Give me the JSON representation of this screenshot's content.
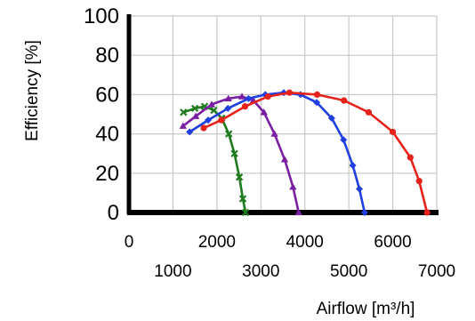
{
  "chart_data": {
    "type": "line",
    "title": "",
    "xlabel": "Airflow [m³/h]",
    "ylabel": "Efficiency [%]",
    "xlim": [
      0,
      7000
    ],
    "ylim": [
      0,
      100
    ],
    "grid": true,
    "legend": "none",
    "x_ticks_row1": [
      "0",
      "2000",
      "4000",
      "6000"
    ],
    "x_ticks_row2": [
      "1000",
      "3000",
      "5000",
      "7000"
    ],
    "y_ticks": [
      "0",
      "20",
      "40",
      "60",
      "80",
      "100"
    ],
    "series": [
      {
        "color": "#1e7b1e",
        "marker": "x",
        "points": [
          [
            1240,
            51
          ],
          [
            1500,
            53
          ],
          [
            1720,
            54
          ],
          [
            1930,
            52
          ],
          [
            2110,
            48
          ],
          [
            2270,
            40
          ],
          [
            2400,
            30
          ],
          [
            2510,
            18
          ],
          [
            2590,
            7
          ],
          [
            2650,
            0
          ]
        ]
      },
      {
        "color": "#7b1fa2",
        "marker": "triangle",
        "points": [
          [
            1230,
            44
          ],
          [
            1520,
            49
          ],
          [
            1880,
            55
          ],
          [
            2260,
            58
          ],
          [
            2570,
            59
          ],
          [
            2830,
            57
          ],
          [
            3070,
            51
          ],
          [
            3310,
            40
          ],
          [
            3540,
            27
          ],
          [
            3730,
            13
          ],
          [
            3860,
            0
          ]
        ]
      },
      {
        "color": "#1f3fe0",
        "marker": "diamond",
        "points": [
          [
            1380,
            41
          ],
          [
            1800,
            47
          ],
          [
            2250,
            53
          ],
          [
            2720,
            58
          ],
          [
            3100,
            60
          ],
          [
            3520,
            61
          ],
          [
            3900,
            60
          ],
          [
            4270,
            56
          ],
          [
            4610,
            48
          ],
          [
            4880,
            37
          ],
          [
            5090,
            24
          ],
          [
            5240,
            12
          ],
          [
            5360,
            0
          ]
        ]
      },
      {
        "color": "#e5231b",
        "marker": "circle",
        "points": [
          [
            1700,
            43
          ],
          [
            2100,
            47
          ],
          [
            2640,
            54
          ],
          [
            3160,
            59
          ],
          [
            3650,
            61
          ],
          [
            4280,
            60
          ],
          [
            4890,
            57
          ],
          [
            5450,
            51
          ],
          [
            6000,
            41
          ],
          [
            6400,
            28
          ],
          [
            6600,
            16
          ],
          [
            6780,
            0
          ]
        ]
      }
    ]
  }
}
